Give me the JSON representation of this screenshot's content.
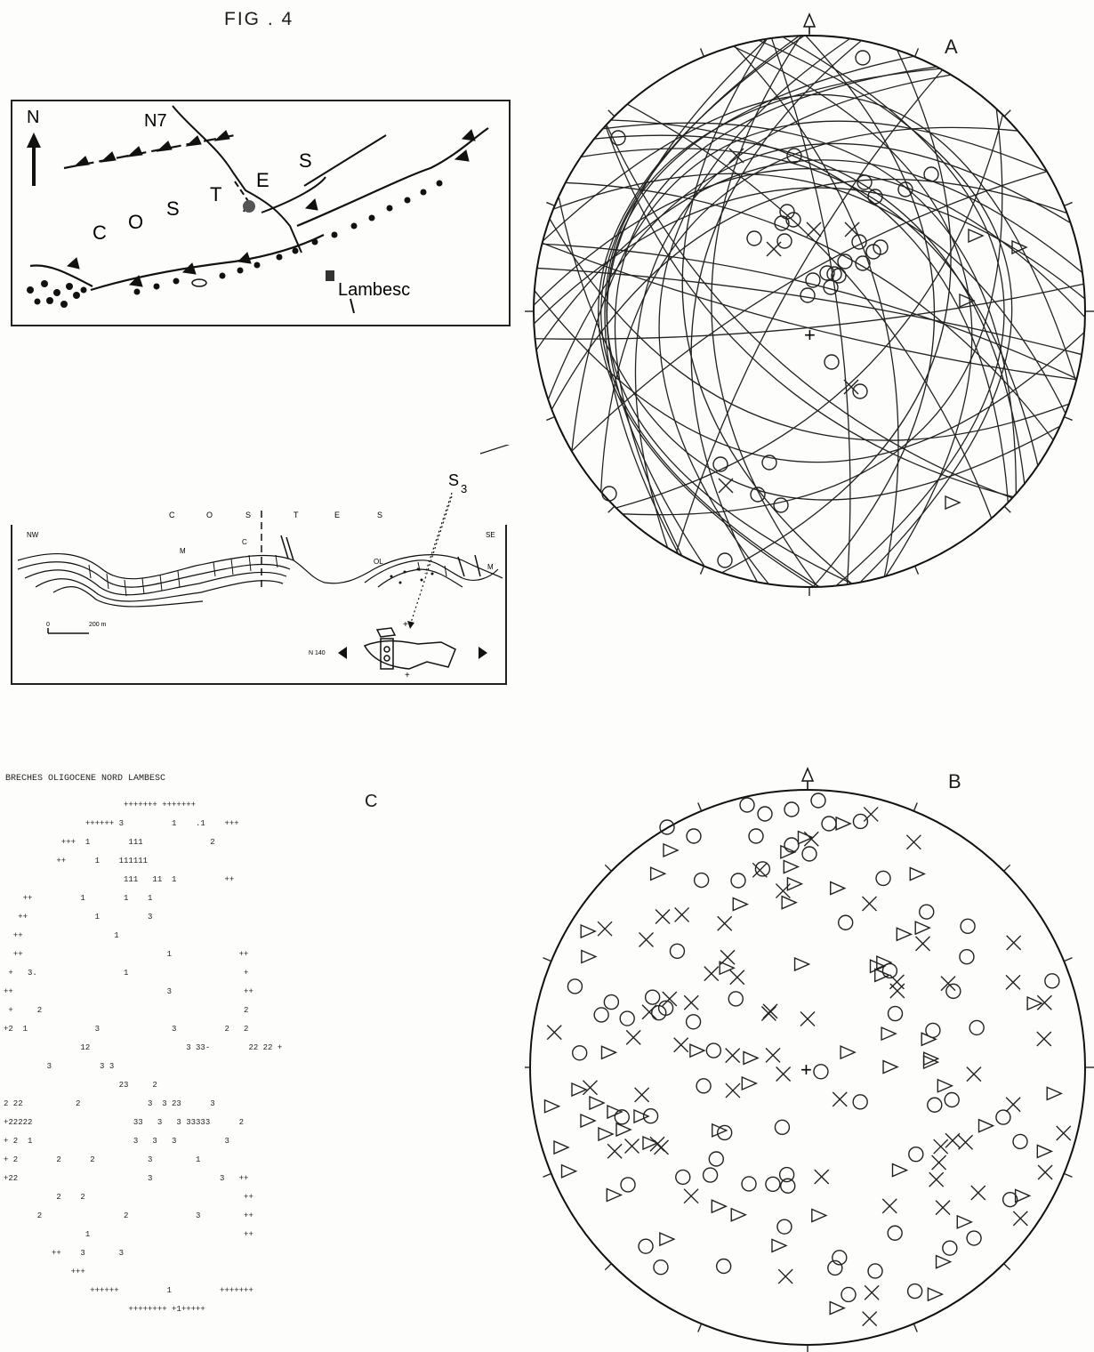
{
  "figure": {
    "title": "FIG . 4"
  },
  "map": {
    "north": "N",
    "road": "N7",
    "region": [
      "C",
      "O",
      "S",
      "T",
      "E",
      "S"
    ],
    "town": "Lambesc"
  },
  "section": {
    "header": [
      "C",
      "O",
      "S",
      "T",
      "E",
      "S"
    ],
    "nw": "NW",
    "se": "SE",
    "unit_m": "M",
    "unit_c": "C",
    "unit_ol": "OL",
    "unit_m2": "M",
    "scale_zero": "0",
    "scale_len": "200 m",
    "direction": "N 140",
    "site": "S",
    "site_sub": "3"
  },
  "panel_a": {
    "label": "A"
  },
  "panel_b": {
    "label": "B"
  },
  "panel_c": {
    "label": "C",
    "heading": "BRECHES OLIGOCENE NORD LAMBESC",
    "rows": [
      "                         +++++++ +++++++",
      "                 ++++++ 3          1    .1    +++",
      "            +++  1        111              2",
      "           ++      1    111111",
      "                         111   11  1          ++",
      "    ++          1        1    1",
      "   ++              1          3",
      "  ++                   1",
      "  ++                              1              ++",
      " +   3.                  1                        +",
      "++                                3               ++",
      " +     2                                          2",
      "+2  1              3               3          2   2",
      "                12                    3 33-        22 22 +",
      "         3          3 3",
      "                        23     2",
      "2 22           2              3  3 23      3",
      "+22222                     33   3   3 33333      2",
      "+ 2  1                     3   3   3          3",
      "+ 2        2      2           3         1",
      "+22                           3              3   ++",
      "           2    2                                 ++",
      "       2                 2              3         ++",
      "                 1                                ++",
      "          ++    3       3",
      "              +++",
      "                  ++++++          1          +++++++",
      "                          ++++++++ +1+++++"
    ]
  }
}
